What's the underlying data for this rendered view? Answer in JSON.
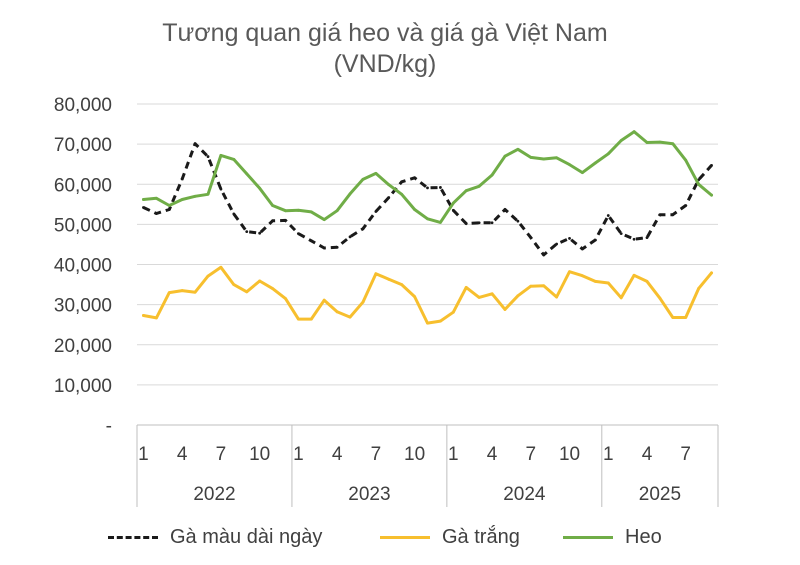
{
  "chart_data": {
    "type": "line",
    "title": "Tương quan giá heo và giá gà Việt Nam",
    "subtitle": "(VND/kg)",
    "xlabel": "",
    "ylabel": "",
    "ylim": [
      0,
      80000
    ],
    "yticks": [
      "-",
      "10,000",
      "20,000",
      "30,000",
      "40,000",
      "50,000",
      "60,000",
      "70,000",
      "80,000"
    ],
    "ytick_values": [
      0,
      10000,
      20000,
      30000,
      40000,
      50000,
      60000,
      70000,
      80000
    ],
    "grid": true,
    "legend_position": "bottom",
    "x_month_labels": [
      "1",
      "4",
      "7",
      "10",
      "1",
      "4",
      "7",
      "10",
      "1",
      "4",
      "7",
      "10",
      "1",
      "4",
      "7"
    ],
    "x_month_label_index": [
      0,
      3,
      6,
      9,
      12,
      15,
      18,
      21,
      24,
      27,
      30,
      33,
      36,
      39,
      42
    ],
    "years": [
      {
        "label": "2022",
        "start": 0,
        "months": 12
      },
      {
        "label": "2023",
        "start": 12,
        "months": 12
      },
      {
        "label": "2024",
        "start": 24,
        "months": 12
      },
      {
        "label": "2025",
        "start": 36,
        "months": 9
      }
    ],
    "series": [
      {
        "name": "Gà màu dài ngày",
        "color": "#1a1a1a",
        "dash": true,
        "values": [
          54200,
          52700,
          53700,
          61300,
          70100,
          66900,
          58800,
          52600,
          48200,
          47800,
          50900,
          51000,
          47700,
          45900,
          44100,
          44300,
          46900,
          48900,
          53200,
          56700,
          60600,
          61600,
          59100,
          59200,
          53500,
          50200,
          50400,
          50400,
          53700,
          50800,
          46700,
          42400,
          45100,
          46500,
          43900,
          46100,
          52200,
          47700,
          46300,
          46700,
          52400,
          52400,
          54700,
          61100,
          64700
        ]
      },
      {
        "name": "Gà trắng",
        "color": "#f7bf2e",
        "dash": false,
        "values": [
          27300,
          26700,
          33000,
          33500,
          33100,
          37100,
          39300,
          35000,
          33200,
          35900,
          34000,
          31500,
          26400,
          26400,
          31100,
          28200,
          26900,
          30600,
          37700,
          36300,
          35000,
          32000,
          25400,
          25900,
          28100,
          34300,
          31800,
          32700,
          28800,
          32200,
          34600,
          34700,
          31900,
          38200,
          37200,
          35800,
          35400,
          31700,
          37300,
          35800,
          31600,
          26800,
          26800,
          34000,
          37900
        ]
      },
      {
        "name": "Heo",
        "color": "#70ad47",
        "dash": false,
        "values": [
          56200,
          56500,
          54700,
          56200,
          57000,
          57500,
          67200,
          66200,
          62600,
          59000,
          54700,
          53400,
          53500,
          53100,
          51200,
          53400,
          57600,
          61200,
          62700,
          59900,
          57500,
          53700,
          51400,
          50500,
          55300,
          58400,
          59500,
          62300,
          67000,
          68700,
          66700,
          66300,
          66600,
          64900,
          62900,
          65300,
          67600,
          70900,
          73100,
          70400,
          70500,
          70100,
          66000,
          60000,
          57300
        ]
      }
    ]
  }
}
